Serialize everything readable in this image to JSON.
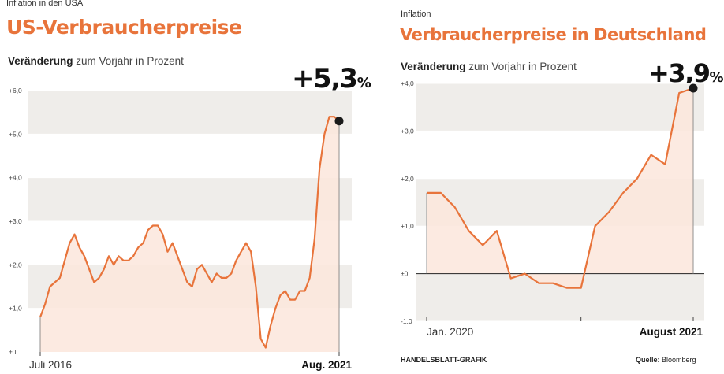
{
  "colors": {
    "accent": "#e8743b",
    "band": "#efedea",
    "fill": "#fbe6dc",
    "text": "#222222"
  },
  "left": {
    "kicker": "Inflation in den USA",
    "headline": "US-Verbraucherpreise",
    "subtitle_bold": "Veränderung",
    "subtitle_rest": " zum Vorjahr in Prozent",
    "big_value": "+5,3",
    "big_unit": "%"
  },
  "right": {
    "kicker": "Inflation",
    "headline": "Verbraucherpreise in Deutschland",
    "subtitle_bold": "Veränderung",
    "subtitle_rest": " zum Vorjahr in Prozent",
    "big_value": "+3,9",
    "big_unit": "%",
    "credit": "HANDELSBLATT-GRAFIK",
    "source_label": "Quelle:",
    "source_value": " Bloomberg"
  },
  "chart_data": [
    {
      "type": "area",
      "title": "US-Verbraucherpreise",
      "ylim": [
        0,
        6
      ],
      "yticks": [
        "±0",
        "+1,0",
        "+2,0",
        "+3,0",
        "+4,0",
        "+5,0",
        "+6,0"
      ],
      "x_labels": [
        "Juli 2016",
        "Aug. 2021"
      ],
      "x_start": "2016-07",
      "x_end": "2021-08",
      "series": [
        {
          "values": [
            0.8,
            1.1,
            1.5,
            1.6,
            1.7,
            2.1,
            2.5,
            2.7,
            2.4,
            2.2,
            1.9,
            1.6,
            1.7,
            1.9,
            2.2,
            2.0,
            2.2,
            2.1,
            2.1,
            2.2,
            2.4,
            2.5,
            2.8,
            2.9,
            2.9,
            2.7,
            2.3,
            2.5,
            2.2,
            1.9,
            1.6,
            1.5,
            1.9,
            2.0,
            1.8,
            1.6,
            1.8,
            1.7,
            1.7,
            1.8,
            2.1,
            2.3,
            2.5,
            2.3,
            1.5,
            0.3,
            0.1,
            0.6,
            1.0,
            1.3,
            1.4,
            1.2,
            1.2,
            1.4,
            1.4,
            1.7,
            2.6,
            4.2,
            5.0,
            5.4,
            5.4,
            5.3
          ]
        }
      ],
      "highlight": {
        "label": "+5,3 %",
        "value": 5.3
      }
    },
    {
      "type": "area",
      "title": "Verbraucherpreise in Deutschland",
      "ylim": [
        -1,
        4
      ],
      "yticks": [
        "-1,0",
        "±0",
        "+1,0",
        "+2,0",
        "+3,0",
        "+4,0"
      ],
      "x_labels": [
        "Jan. 2020",
        "August 2021"
      ],
      "x_start": "2020-01",
      "x_end": "2021-08",
      "series": [
        {
          "values": [
            1.7,
            1.7,
            1.4,
            0.9,
            0.6,
            0.9,
            -0.1,
            0.0,
            -0.2,
            -0.2,
            -0.3,
            -0.3,
            1.0,
            1.3,
            1.7,
            2.0,
            2.5,
            2.3,
            3.8,
            3.9
          ]
        }
      ],
      "highlight": {
        "label": "+3,9 %",
        "value": 3.9
      }
    }
  ]
}
